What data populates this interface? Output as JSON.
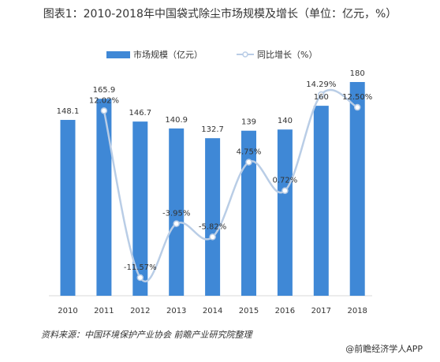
{
  "title": "图表1：2010-2018年中国袋式除尘市场规模及增长（单位：亿元，%）",
  "source": "资料来源：中国环境保护产业协会 前瞻产业研究院整理",
  "brand": "@前瞻经济学人APP",
  "colors": {
    "bar": "#3f88d6",
    "line": "#b9cde6",
    "marker": "#b9cde6"
  },
  "chart_data": {
    "type": "bar",
    "categories": [
      "2010",
      "2011",
      "2012",
      "2013",
      "2014",
      "2015",
      "2016",
      "2017",
      "2018"
    ],
    "series": [
      {
        "name": "市场规模（亿元）",
        "type": "bar",
        "values": [
          148.1,
          165.9,
          146.7,
          140.9,
          132.7,
          139,
          140,
          160,
          180
        ],
        "labels": [
          "148.1",
          "165.9",
          "146.7",
          "140.9",
          "132.7",
          "139",
          "140",
          "160",
          "180"
        ]
      },
      {
        "name": "同比增长（%）",
        "type": "line",
        "values": [
          null,
          12.02,
          -11.57,
          -3.95,
          -5.82,
          4.75,
          0.72,
          14.29,
          12.5
        ],
        "labels": [
          "",
          "12.02%",
          "-11.57%",
          "-3.95%",
          "-5.82%",
          "4.75%",
          "0.72%",
          "14.29%",
          "12.50%"
        ]
      }
    ],
    "legend_position": "top",
    "grid": false
  }
}
